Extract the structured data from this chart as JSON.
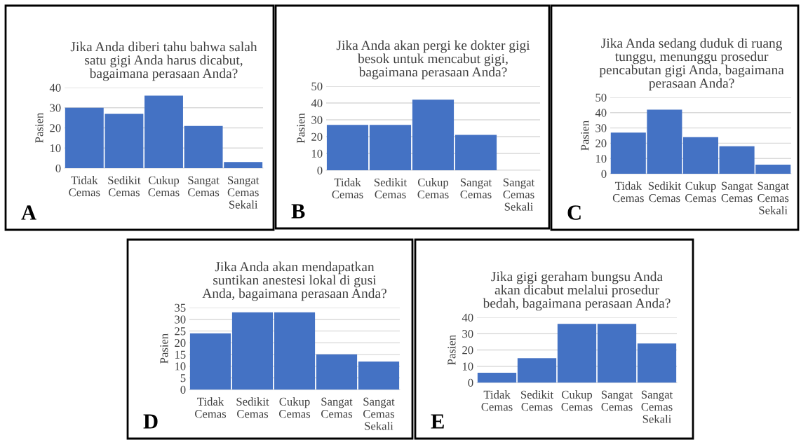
{
  "chart_data": [
    {
      "type": "bar",
      "title": "Jika Anda diberi tahu bahwa salah\nsatu gigi Anda harus dicabut,\nbagaimana perasaan Anda?",
      "ylabel": "Pasien",
      "categories": [
        "Tidak\nCemas",
        "Sedikit\nCemas",
        "Cukup\nCemas",
        "Sangat\nCemas",
        "Sangat\nCemas\nSekali"
      ],
      "values": [
        30,
        27,
        36,
        21,
        3
      ],
      "color": "#4472c4",
      "ylim": [
        0,
        40
      ],
      "yticks": [
        0,
        10,
        20,
        30,
        40
      ],
      "grid": "y",
      "annotations": [
        "A"
      ]
    },
    {
      "type": "bar",
      "title": "Jika Anda akan pergi ke dokter gigi\nbesok untuk mencabut gigi,\nbagaimana perasaan Anda?",
      "ylabel": "Pasien",
      "categories": [
        "Tidak\nCemas",
        "Sedikit\nCemas",
        "Cukup\nCemas",
        "Sangat\nCemas",
        "Sangat\nCemas\nSekali"
      ],
      "values": [
        27,
        27,
        42,
        21,
        0
      ],
      "color": "#4472c4",
      "ylim": [
        0,
        50
      ],
      "yticks": [
        0,
        10,
        20,
        30,
        40,
        50
      ],
      "grid": "y",
      "annotations": [
        "B"
      ]
    },
    {
      "type": "bar",
      "title": "Jika Anda sedang duduk di ruang\ntunggu, menunggu prosedur\npencabutan gigi Anda, bagaimana\nperasaan Anda?",
      "ylabel": "Pasien",
      "categories": [
        "Tidak\nCemas",
        "Sedikit\nCemas",
        "Cukup\nCemas",
        "Sangat\nCemas",
        "Sangat\nCemas\nSekali"
      ],
      "values": [
        27,
        42,
        24,
        18,
        6
      ],
      "color": "#4472c4",
      "ylim": [
        0,
        50
      ],
      "yticks": [
        0,
        10,
        20,
        30,
        40,
        50
      ],
      "grid": "y",
      "annotations": [
        "C"
      ]
    },
    {
      "type": "bar",
      "title": "Jika Anda akan mendapatkan\nsuntikan anestesi lokal di gusi\nAnda, bagaimana perasaan Anda?",
      "ylabel": "Pasien",
      "categories": [
        "Tidak\nCemas",
        "Sedikit\nCemas",
        "Cukup\nCemas",
        "Sangat\nCemas",
        "Sangat\nCemas\nSekali"
      ],
      "values": [
        24,
        33,
        33,
        15,
        12
      ],
      "color": "#4472c4",
      "ylim": [
        0,
        35
      ],
      "yticks": [
        0,
        5,
        10,
        15,
        20,
        25,
        30,
        35
      ],
      "grid": "y",
      "annotations": [
        "D"
      ]
    },
    {
      "type": "bar",
      "title": "Jika gigi geraham bungsu Anda\nakan dicabut melalui prosedur\nbedah, bagaimana perasaan Anda?",
      "ylabel": "Pasien",
      "categories": [
        "Tidak\nCemas",
        "Sedikit\nCemas",
        "Cukup\nCemas",
        "Sangat\nCemas",
        "Sangat\nCemas\nSekali"
      ],
      "values": [
        6,
        15,
        36,
        36,
        24
      ],
      "color": "#4472c4",
      "ylim": [
        0,
        40
      ],
      "yticks": [
        0,
        10,
        20,
        30,
        40
      ],
      "grid": "y",
      "annotations": [
        "E"
      ]
    }
  ]
}
